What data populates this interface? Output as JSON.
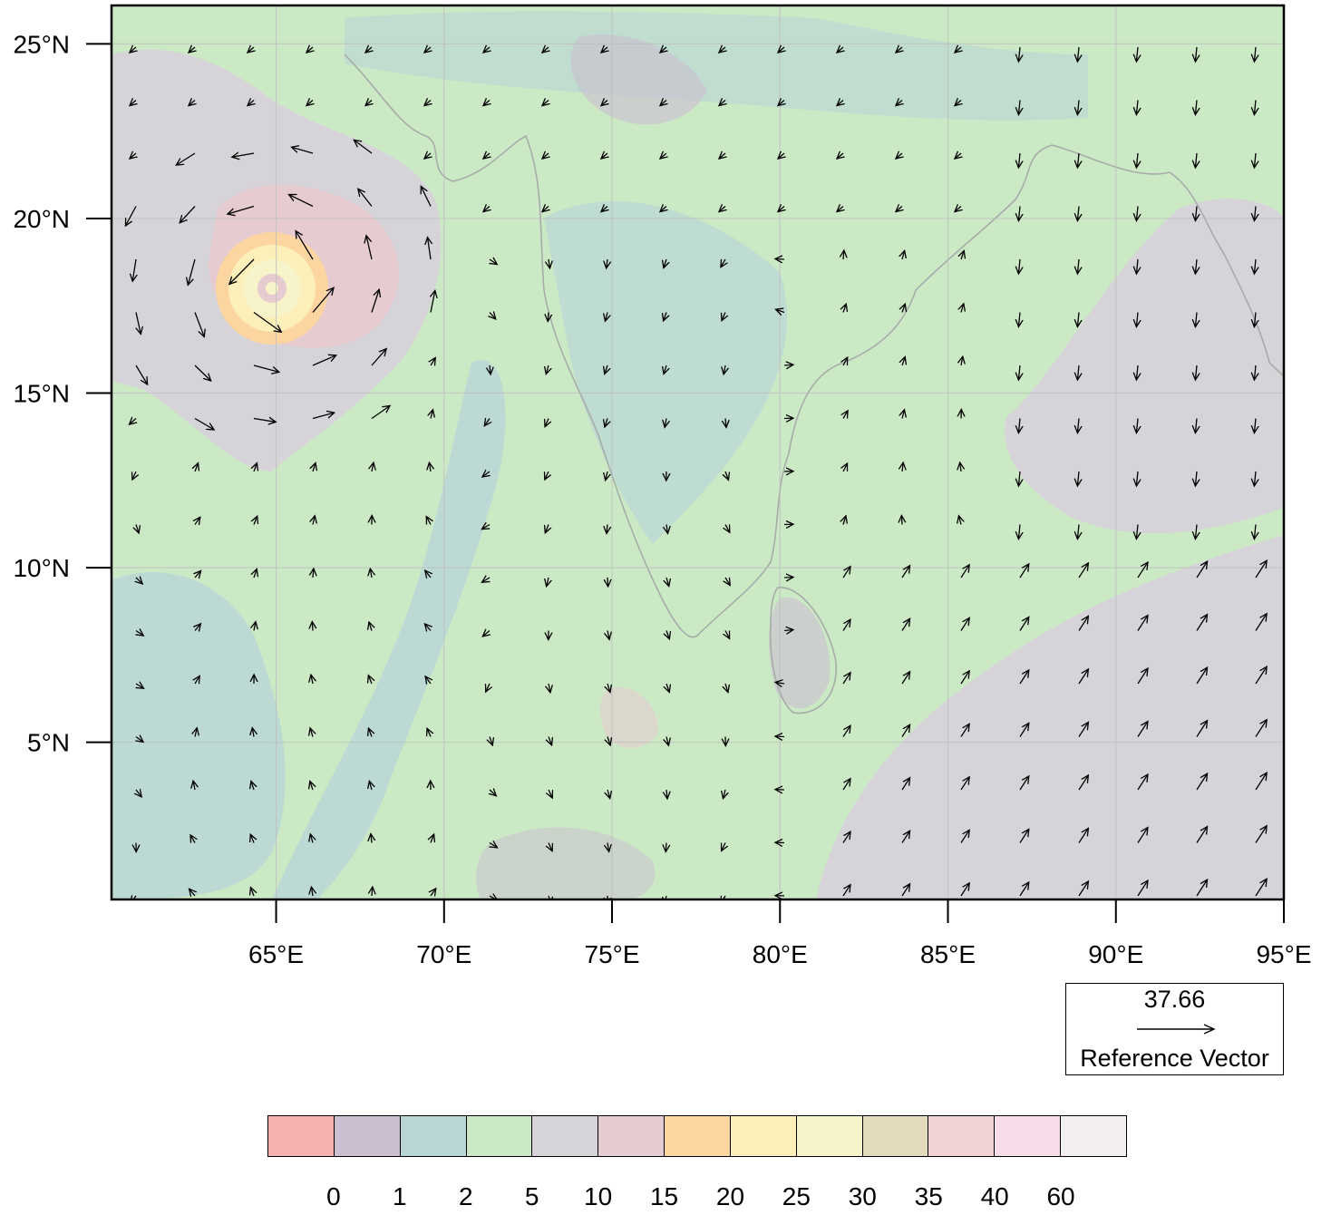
{
  "map": {
    "lat_labels": [
      "25°N",
      "20°N",
      "15°N",
      "10°N",
      "5°N"
    ],
    "lon_labels": [
      "65°E",
      "70°E",
      "75°E",
      "80°E",
      "85°E",
      "90°E",
      "95°E"
    ],
    "extent": {
      "lon_min": 60.1,
      "lon_max": 95,
      "lat_min": 0.5,
      "lat_max": 26.1
    },
    "grid": true,
    "cyclone_center": {
      "lon": 65.0,
      "lat": 18.2
    }
  },
  "reference_vector": {
    "value": "37.66",
    "label": "Reference Vector"
  },
  "colorbar": {
    "labels": [
      "0",
      "1",
      "2",
      "5",
      "10",
      "15",
      "20",
      "25",
      "30",
      "35",
      "40",
      "60"
    ],
    "colors": [
      "#f4b2ae",
      "#c9bfd0",
      "#b8d6d6",
      "#cce9c6",
      "#d6d4d8",
      "#e6cbd0",
      "#fcd5a1",
      "#fcefba",
      "#f6f4c8",
      "#e3d9bc",
      "#f1d3d4",
      "#f9dcea",
      "#f3eef0"
    ]
  }
}
